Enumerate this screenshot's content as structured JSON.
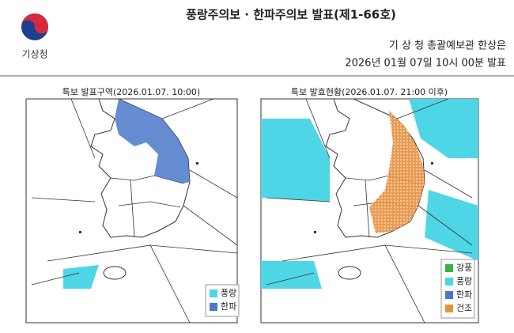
{
  "header": {
    "logo_text": "기상청",
    "title": "풍랑주의보 · 한파주의보 발표(제1-66호)",
    "forecaster": "기 상 청 총괄예보관 한상은",
    "issued": "2026년 01월 07일 10시 00분 발표"
  },
  "left_map": {
    "title": "특보 발표구역(2026.01.07. 10:00)",
    "legend": [
      {
        "label": "풍랑",
        "color": "#4fd6e6"
      },
      {
        "label": "한파",
        "color": "#4a78c8"
      }
    ]
  },
  "right_map": {
    "title": "특보 발효현황(2026.01.07. 21:00 이후)",
    "legend": [
      {
        "label": "강풍",
        "color": "#2fb34a"
      },
      {
        "label": "풍랑",
        "color": "#4fd6e6"
      },
      {
        "label": "한파",
        "color": "#4a78c8"
      },
      {
        "label": "건조",
        "color": "#e8903e"
      }
    ]
  }
}
